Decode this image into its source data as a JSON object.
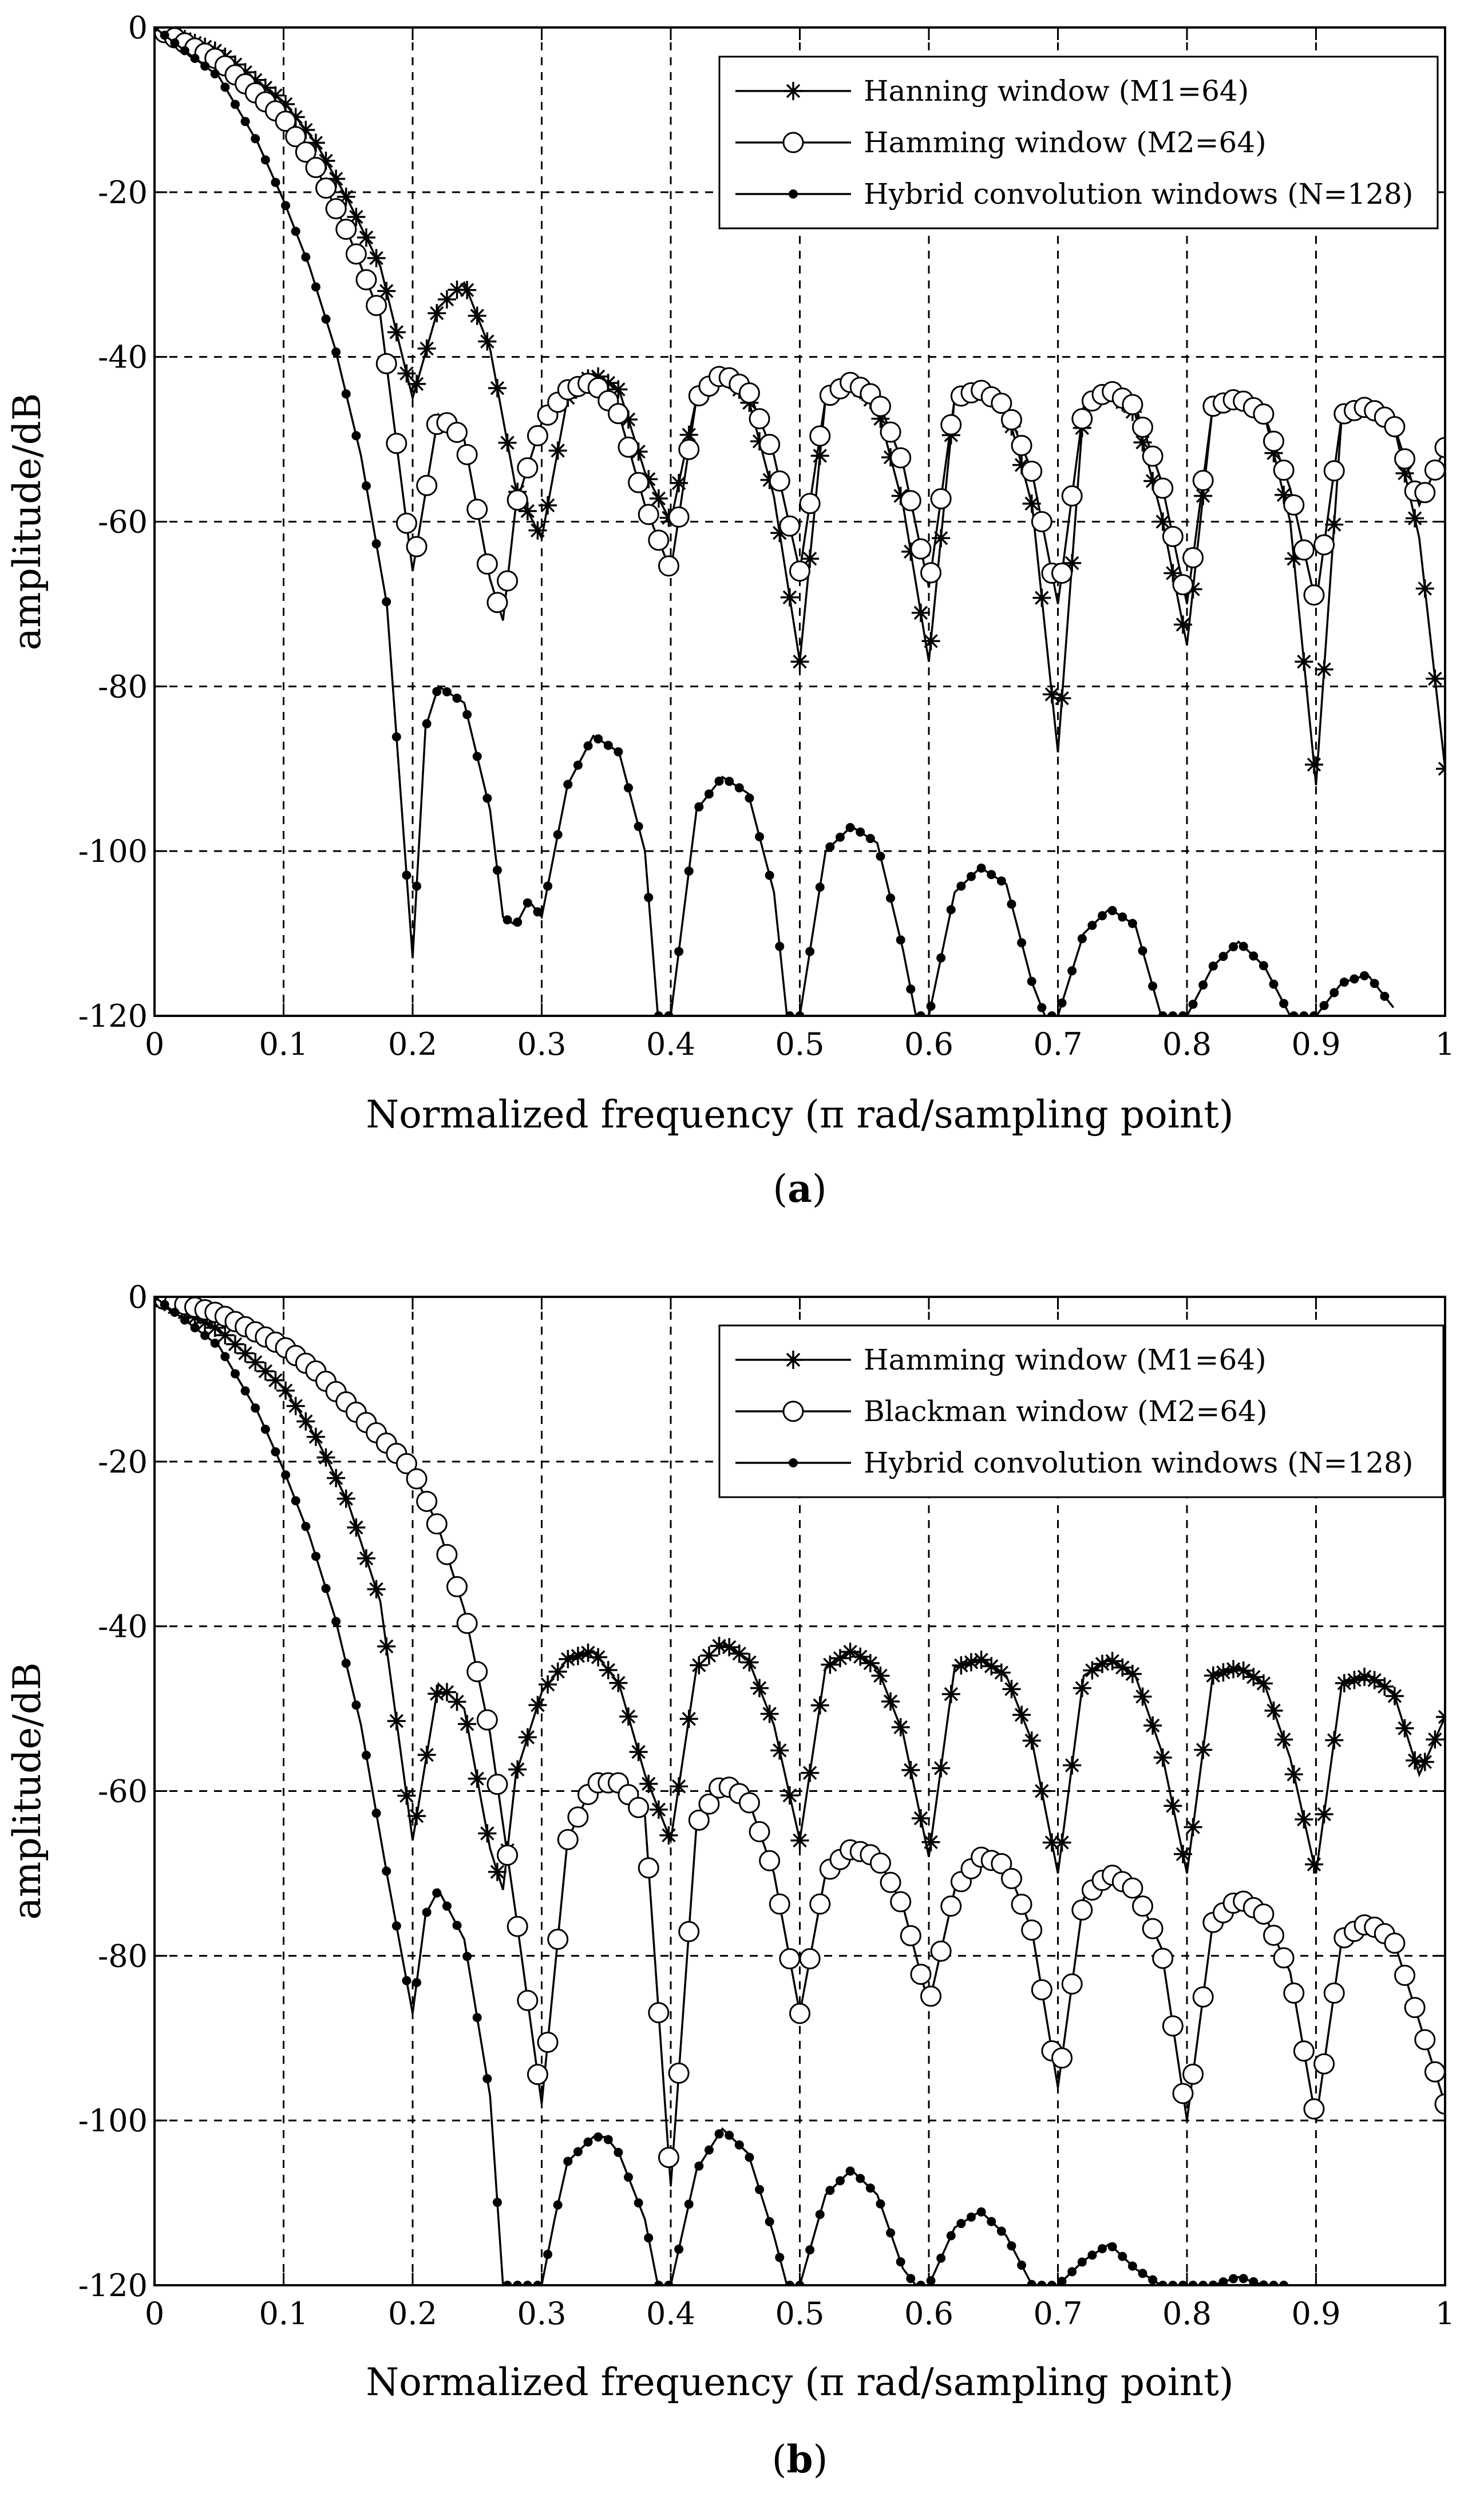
{
  "figure": {
    "panels": [
      {
        "caption_open": "(",
        "caption_letter": "a",
        "caption_close": ")"
      },
      {
        "caption_open": "(",
        "caption_letter": "b",
        "caption_close": ")"
      }
    ]
  },
  "chart_data": [
    {
      "type": "line",
      "panel": "a",
      "title": "",
      "xlabel": "Normalized frequency (π rad/sampling point)",
      "ylabel": "amplitude/dB",
      "xlim": [
        0,
        1
      ],
      "ylim": [
        -120,
        0
      ],
      "xticks": [
        "0",
        "0.1",
        "0.2",
        "0.3",
        "0.4",
        "0.5",
        "0.6",
        "0.7",
        "0.8",
        "0.9",
        "1"
      ],
      "yticks": [
        "0",
        "-20",
        "-40",
        "-60",
        "-80",
        "-100",
        "-120"
      ],
      "grid": true,
      "legend_position": "top-right",
      "series": [
        {
          "name": "Hanning window (M1=64)",
          "marker": "star",
          "main_width": 0.0625,
          "x": [
            0,
            0.05,
            0.1,
            0.125,
            0.15,
            0.175,
            0.2,
            0.22,
            0.24,
            0.26,
            0.28,
            0.3,
            0.32,
            0.34,
            0.36,
            0.38,
            0.4,
            0.42,
            0.44,
            0.46,
            0.48,
            0.5,
            0.52,
            0.54,
            0.56,
            0.58,
            0.6,
            0.62,
            0.64,
            0.66,
            0.68,
            0.7,
            0.72,
            0.74,
            0.76,
            0.78,
            0.8,
            0.82,
            0.84,
            0.86,
            0.88,
            0.9,
            0.92,
            0.94,
            0.96,
            0.98,
            1.0
          ],
          "y": [
            0,
            -3,
            -9,
            -14,
            -21,
            -29,
            -45,
            -34,
            -31,
            -39,
            -56,
            -62,
            -45,
            -42,
            -44,
            -54,
            -60,
            -45,
            -42,
            -45,
            -57,
            -77,
            -45,
            -43,
            -46,
            -58,
            -77,
            -45,
            -44,
            -46,
            -58,
            -88,
            -46,
            -44,
            -47,
            -59,
            -75,
            -46,
            -45,
            -47,
            -60,
            -92,
            -47,
            -46,
            -48,
            -62,
            -90
          ]
        },
        {
          "name": "Hamming window (M2=64)",
          "marker": "circle",
          "main_width": 0.05,
          "x": [
            0,
            0.05,
            0.1,
            0.125,
            0.15,
            0.175,
            0.2,
            0.22,
            0.24,
            0.26,
            0.27,
            0.28,
            0.3,
            0.32,
            0.34,
            0.36,
            0.38,
            0.4,
            0.42,
            0.44,
            0.46,
            0.48,
            0.5,
            0.52,
            0.54,
            0.56,
            0.58,
            0.6,
            0.62,
            0.64,
            0.66,
            0.68,
            0.7,
            0.72,
            0.74,
            0.76,
            0.78,
            0.8,
            0.82,
            0.84,
            0.86,
            0.88,
            0.9,
            0.92,
            0.94,
            0.96,
            0.98,
            1.0
          ],
          "y": [
            0,
            -4,
            -11,
            -17,
            -25,
            -35,
            -66,
            -47,
            -50,
            -67,
            -72,
            -58,
            -48,
            -44,
            -43,
            -47,
            -58,
            -66,
            -45,
            -42,
            -44,
            -52,
            -66,
            -45,
            -43,
            -45,
            -53,
            -68,
            -45,
            -44,
            -46,
            -54,
            -70,
            -46,
            -44,
            -46,
            -55,
            -70,
            -46,
            -45,
            -47,
            -56,
            -70,
            -47,
            -46,
            -48,
            -58,
            -51
          ]
        },
        {
          "name": "Hybrid convolution windows (N=128)",
          "marker": "dot",
          "main_width": 0.0625,
          "x": [
            0,
            0.05,
            0.08,
            0.1,
            0.12,
            0.14,
            0.16,
            0.18,
            0.2,
            0.21,
            0.22,
            0.24,
            0.26,
            0.27,
            0.28,
            0.29,
            0.3,
            0.32,
            0.34,
            0.36,
            0.38,
            0.39,
            0.4,
            0.42,
            0.44,
            0.46,
            0.48,
            0.49,
            0.5,
            0.52,
            0.54,
            0.56,
            0.58,
            0.59,
            0.6,
            0.62,
            0.64,
            0.66,
            0.68,
            0.69,
            0.7,
            0.72,
            0.74,
            0.76,
            0.78,
            0.79,
            0.8,
            0.82,
            0.84,
            0.86,
            0.88,
            0.89,
            0.9,
            0.92,
            0.94,
            0.96
          ],
          "y": [
            0,
            -6,
            -14,
            -21,
            -29,
            -39,
            -52,
            -70,
            -113,
            -85,
            -80,
            -82,
            -95,
            -108,
            -109,
            -106,
            -108,
            -92,
            -86,
            -88,
            -100,
            -120,
            -120,
            -95,
            -91,
            -93,
            -105,
            -120,
            -120,
            -100,
            -97,
            -99,
            -112,
            -120,
            -120,
            -105,
            -102,
            -104,
            -116,
            -120,
            -120,
            -110,
            -107,
            -109,
            -120,
            -120,
            -120,
            -114,
            -111,
            -114,
            -120,
            -120,
            -120,
            -116,
            -115,
            -119
          ]
        }
      ]
    },
    {
      "type": "line",
      "panel": "b",
      "title": "",
      "xlabel": "Normalized frequency (π rad/sampling point)",
      "ylabel": "amplitude/dB",
      "xlim": [
        0,
        1
      ],
      "ylim": [
        -120,
        0
      ],
      "xticks": [
        "0",
        "0.1",
        "0.2",
        "0.3",
        "0.4",
        "0.5",
        "0.6",
        "0.7",
        "0.8",
        "0.9",
        "1"
      ],
      "yticks": [
        "0",
        "-20",
        "-40",
        "-60",
        "-80",
        "-100",
        "-120"
      ],
      "grid": true,
      "legend_position": "top-right",
      "series": [
        {
          "name": "Hamming window (M1=64)",
          "marker": "star",
          "main_width": 0.0625,
          "x": [
            0,
            0.05,
            0.1,
            0.125,
            0.15,
            0.175,
            0.2,
            0.22,
            0.24,
            0.26,
            0.27,
            0.28,
            0.3,
            0.32,
            0.34,
            0.36,
            0.38,
            0.4,
            0.42,
            0.44,
            0.46,
            0.48,
            0.5,
            0.52,
            0.54,
            0.56,
            0.58,
            0.6,
            0.62,
            0.64,
            0.66,
            0.68,
            0.7,
            0.72,
            0.74,
            0.76,
            0.78,
            0.8,
            0.82,
            0.84,
            0.86,
            0.88,
            0.9,
            0.92,
            0.94,
            0.96,
            0.98,
            1.0
          ],
          "y": [
            0,
            -4,
            -11,
            -17,
            -25,
            -37,
            -66,
            -47,
            -50,
            -67,
            -72,
            -58,
            -48,
            -44,
            -43,
            -47,
            -58,
            -66,
            -45,
            -42,
            -44,
            -52,
            -66,
            -45,
            -43,
            -45,
            -53,
            -68,
            -45,
            -44,
            -46,
            -54,
            -70,
            -46,
            -44,
            -46,
            -55,
            -70,
            -46,
            -45,
            -47,
            -56,
            -70,
            -47,
            -46,
            -48,
            -58,
            -51
          ]
        },
        {
          "name": "Blackman window (M2=64)",
          "marker": "circle",
          "main_width": 0.095,
          "x": [
            0,
            0.05,
            0.1,
            0.125,
            0.15,
            0.175,
            0.2,
            0.22,
            0.24,
            0.26,
            0.28,
            0.3,
            0.32,
            0.34,
            0.36,
            0.38,
            0.4,
            0.42,
            0.44,
            0.46,
            0.48,
            0.5,
            0.52,
            0.54,
            0.56,
            0.58,
            0.6,
            0.62,
            0.64,
            0.66,
            0.68,
            0.7,
            0.72,
            0.74,
            0.76,
            0.78,
            0.8,
            0.82,
            0.84,
            0.86,
            0.88,
            0.9,
            0.92,
            0.94,
            0.96,
            0.98,
            1.0
          ],
          "y": [
            0,
            -2,
            -6,
            -9,
            -13,
            -17,
            -21,
            -28,
            -38,
            -53,
            -75,
            -98,
            -66,
            -59,
            -59,
            -63,
            -108,
            -64,
            -59,
            -61,
            -70,
            -87,
            -70,
            -67,
            -68,
            -74,
            -86,
            -72,
            -68,
            -69,
            -77,
            -96,
            -73,
            -70,
            -72,
            -79,
            -100,
            -76,
            -73,
            -75,
            -82,
            -100,
            -78,
            -76,
            -78,
            -88,
            -98
          ]
        },
        {
          "name": "Hybrid convolution windows (N=128)",
          "marker": "dot",
          "main_width": 0.0625,
          "x": [
            0,
            0.05,
            0.08,
            0.1,
            0.12,
            0.14,
            0.16,
            0.18,
            0.2,
            0.21,
            0.22,
            0.24,
            0.26,
            0.27,
            0.28,
            0.3,
            0.31,
            0.32,
            0.34,
            0.35,
            0.36,
            0.38,
            0.39,
            0.4,
            0.42,
            0.44,
            0.46,
            0.48,
            0.49,
            0.5,
            0.52,
            0.54,
            0.56,
            0.58,
            0.59,
            0.6,
            0.62,
            0.64,
            0.66,
            0.68,
            0.69,
            0.7,
            0.72,
            0.74,
            0.76,
            0.78,
            0.79,
            0.8,
            0.82,
            0.84,
            0.86,
            0.88
          ],
          "y": [
            0,
            -6,
            -14,
            -21,
            -29,
            -39,
            -52,
            -70,
            -87,
            -75,
            -72,
            -78,
            -97,
            -120,
            -120,
            -120,
            -112,
            -105,
            -102,
            -102,
            -104,
            -112,
            -120,
            -120,
            -106,
            -101,
            -104,
            -114,
            -120,
            -120,
            -109,
            -106,
            -109,
            -118,
            -120,
            -120,
            -113,
            -111,
            -114,
            -120,
            -120,
            -120,
            -117,
            -115,
            -118,
            -120,
            -120,
            -120,
            -120,
            -119,
            -120,
            -120
          ]
        }
      ]
    }
  ]
}
